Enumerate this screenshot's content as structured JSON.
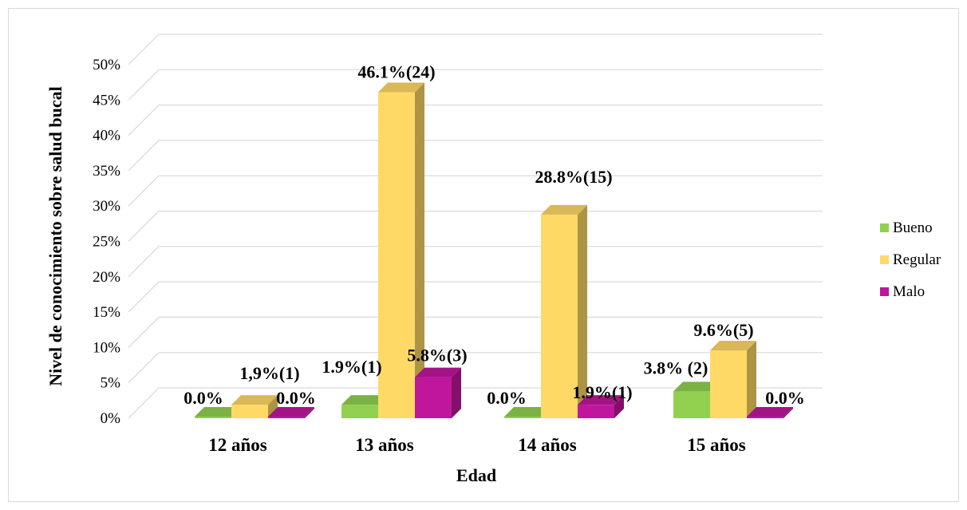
{
  "chart_data": {
    "type": "bar",
    "title": "",
    "xlabel": "Edad",
    "ylabel": "Nivel de conocimiento sobre salud bucal",
    "ylim": [
      0,
      50
    ],
    "yticks": [
      "0%",
      "5%",
      "10%",
      "15%",
      "20%",
      "25%",
      "30%",
      "35%",
      "40%",
      "45%",
      "50%"
    ],
    "categories": [
      "12 años",
      "13 años",
      "14 años",
      "15 años"
    ],
    "series": [
      {
        "name": "Bueno",
        "color": "#92d050",
        "values": [
          0.0,
          1.9,
          0.0,
          3.8
        ],
        "labels": [
          "0.0%",
          "1.9%(1)",
          "0.0%",
          "3.8% (2)"
        ]
      },
      {
        "name": "Regular",
        "color": "#ffd966",
        "values": [
          1.9,
          46.1,
          28.8,
          9.6
        ],
        "labels": [
          "1,9%(1)",
          "46.1%(24)",
          "28.8%(15)",
          "9.6%(5)"
        ]
      },
      {
        "name": "Malo",
        "color": "#c0169e",
        "values": [
          0.0,
          5.8,
          1.9,
          0.0
        ],
        "labels": [
          "0.0%",
          "5.8%(3)",
          "1.9%(1)",
          "0.0%"
        ]
      }
    ],
    "legend_position": "right",
    "grid": true,
    "style": "3d-column"
  }
}
